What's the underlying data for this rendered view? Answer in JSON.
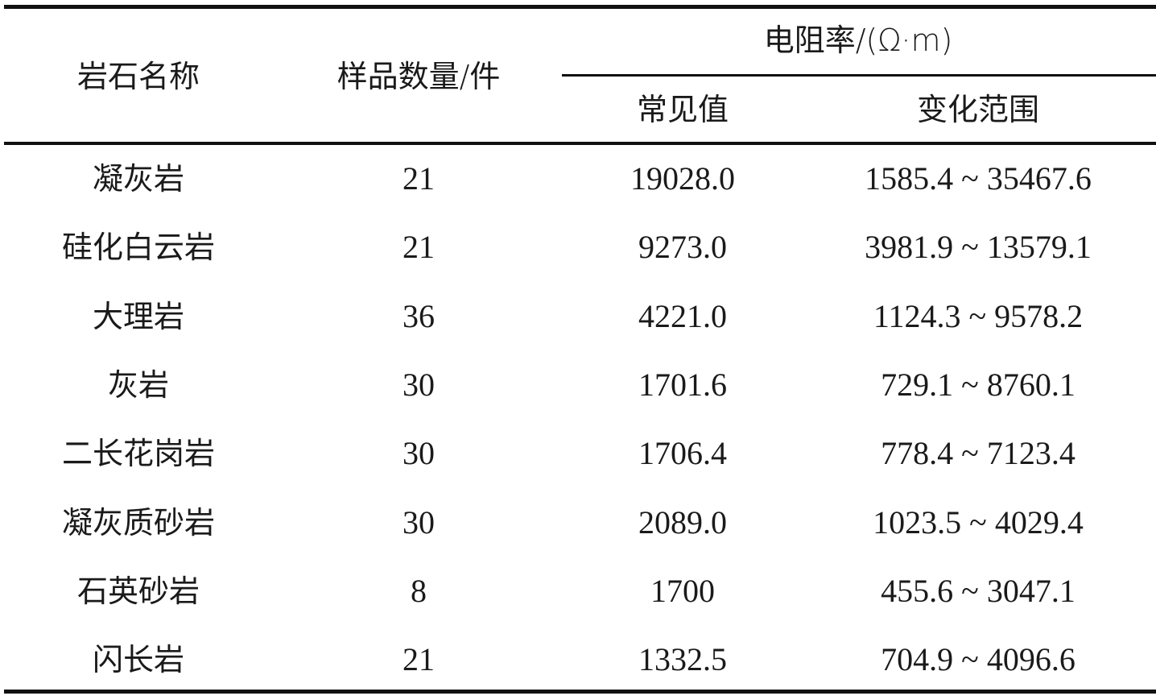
{
  "table": {
    "headers": {
      "name": "岩石名称",
      "count": "样品数量/件",
      "resistivity": "电阻率/(Ω·m)",
      "common": "常见值",
      "range": "变化范围"
    },
    "rows": [
      {
        "name": "凝灰岩",
        "count": "21",
        "common": "19028.0",
        "range": "1585.4 ~ 35467.6"
      },
      {
        "name": "硅化白云岩",
        "count": "21",
        "common": "9273.0",
        "range": "3981.9 ~ 13579.1"
      },
      {
        "name": "大理岩",
        "count": "36",
        "common": "4221.0",
        "range": "1124.3 ~ 9578.2"
      },
      {
        "name": "灰岩",
        "count": "30",
        "common": "1701.6",
        "range": "729.1 ~ 8760.1"
      },
      {
        "name": "二长花岗岩",
        "count": "30",
        "common": "1706.4",
        "range": "778.4 ~ 7123.4"
      },
      {
        "name": "凝灰质砂岩",
        "count": "30",
        "common": "2089.0",
        "range": "1023.5 ~ 4029.4"
      },
      {
        "name": "石英砂岩",
        "count": "8",
        "common": "1700",
        "range": "455.6 ~ 3047.1"
      },
      {
        "name": "闪长岩",
        "count": "21",
        "common": "1332.5",
        "range": "704.9 ~ 4096.6"
      }
    ]
  }
}
